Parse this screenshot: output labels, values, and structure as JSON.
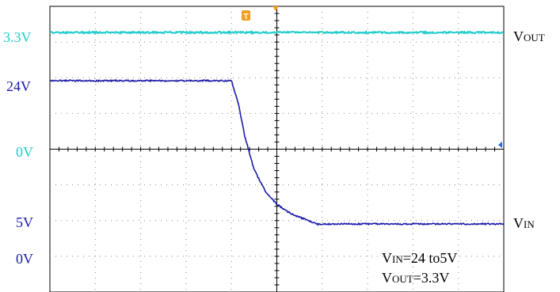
{
  "chart_data": {
    "type": "line",
    "title": "",
    "grid": true,
    "x_divisions": 10,
    "y_divisions": 8,
    "time_unit": "div",
    "series": [
      {
        "key": "vout",
        "color": "#22cccc",
        "ref_label": "3.3V",
        "zero_label": "0V",
        "right_label_main": "V",
        "right_label_sub": "OUT",
        "ref_value_v": 3.3,
        "zero_offset_div": 0,
        "volts_per_div": 2.2,
        "points": [
          [
            0,
            3.3
          ],
          [
            10,
            3.3
          ]
        ]
      },
      {
        "key": "vin",
        "color": "#1a1aa8",
        "ref_label": "24V",
        "right_label_main": "V",
        "right_label_sub": "IN",
        "points": [
          [
            0,
            24
          ],
          [
            4,
            24
          ],
          [
            4.15,
            21
          ],
          [
            4.3,
            16.5
          ],
          [
            4.5,
            12.2
          ],
          [
            4.75,
            9.3
          ],
          [
            5.0,
            7.6
          ],
          [
            5.3,
            6.4
          ],
          [
            5.7,
            5.4
          ],
          [
            5.9,
            5.0
          ],
          [
            10,
            5.0
          ]
        ]
      },
      {
        "key": "vin_axis",
        "color": "#1a1aa8",
        "ref_label": "5V",
        "zero_label": "0V"
      }
    ]
  },
  "annotation": {
    "line1_main": "V",
    "line1_sub": "IN",
    "line1_rest": "=24 to5V",
    "line2_main": "V",
    "line2_sub": "OUT",
    "line2_rest": "=3.3V"
  },
  "markers": {
    "trigger_label": "T",
    "trigger_color": "#f0a020",
    "ground_color": "#2266dd"
  }
}
